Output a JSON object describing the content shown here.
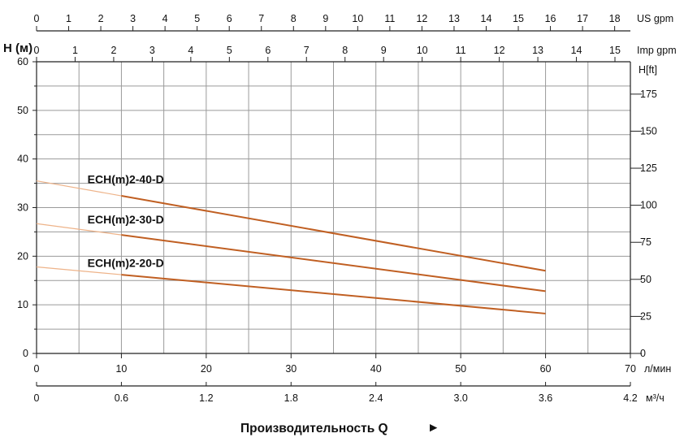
{
  "chart_data": {
    "type": "line",
    "x_unit": "л/мин",
    "x_ticks": [
      0,
      10,
      20,
      30,
      40,
      50,
      60,
      70
    ],
    "xlim": [
      0,
      70
    ],
    "x_gridlines": [
      5,
      10,
      15,
      20,
      25,
      30,
      35,
      40,
      45,
      50,
      55,
      60,
      65
    ],
    "secondary_x_bottom": {
      "unit": "м³/ч",
      "ticks": [
        "0",
        "0.6",
        "1.2",
        "1.8",
        "2.4",
        "3.0",
        "3.6",
        "4.2"
      ],
      "max": 4.2
    },
    "top_axis_us": {
      "unit": "US gpm",
      "ticks": [
        "0",
        "1",
        "2",
        "3",
        "4",
        "5",
        "6",
        "7",
        "8",
        "9",
        "10",
        "11",
        "12",
        "13",
        "14",
        "15",
        "16",
        "17",
        "18"
      ],
      "max": 18.49
    },
    "top_axis_imp": {
      "unit": "Imp gpm",
      "ticks": [
        "0",
        "1",
        "2",
        "3",
        "4",
        "5",
        "6",
        "7",
        "8",
        "9",
        "10",
        "11",
        "12",
        "13",
        "14",
        "15"
      ],
      "max": 15.4
    },
    "ylabel": "H (м)",
    "y_ticks": [
      0,
      10,
      20,
      30,
      40,
      50,
      60
    ],
    "ylim": [
      0,
      60
    ],
    "y_gridlines": [
      5,
      10,
      15,
      20,
      25,
      30,
      35,
      40,
      45,
      50,
      55
    ],
    "right_axis": {
      "label": "H[ft]",
      "ticks": [
        "0",
        "25",
        "50",
        "75",
        "100",
        "125",
        "150",
        "175"
      ],
      "max": 196.85
    },
    "series": [
      {
        "name": "ECH(m)2-40-D",
        "x": [
          0,
          60
        ],
        "y": [
          35.5,
          17.0
        ],
        "label_at": [
          6,
          35
        ]
      },
      {
        "name": "ECH(m)2-30-D",
        "x": [
          0,
          60
        ],
        "y": [
          26.7,
          12.8
        ],
        "label_at": [
          6,
          26.7
        ]
      },
      {
        "name": "ECH(m)2-20-D",
        "x": [
          0,
          60
        ],
        "y": [
          17.8,
          8.2
        ],
        "label_at": [
          6,
          17.8
        ]
      }
    ],
    "line_colors": {
      "light": "#eeb389",
      "dark": "#c05f22"
    },
    "bold_from_x": 10,
    "x_title": "Производительность Q",
    "x_title_arrow": "►",
    "grid": true
  }
}
